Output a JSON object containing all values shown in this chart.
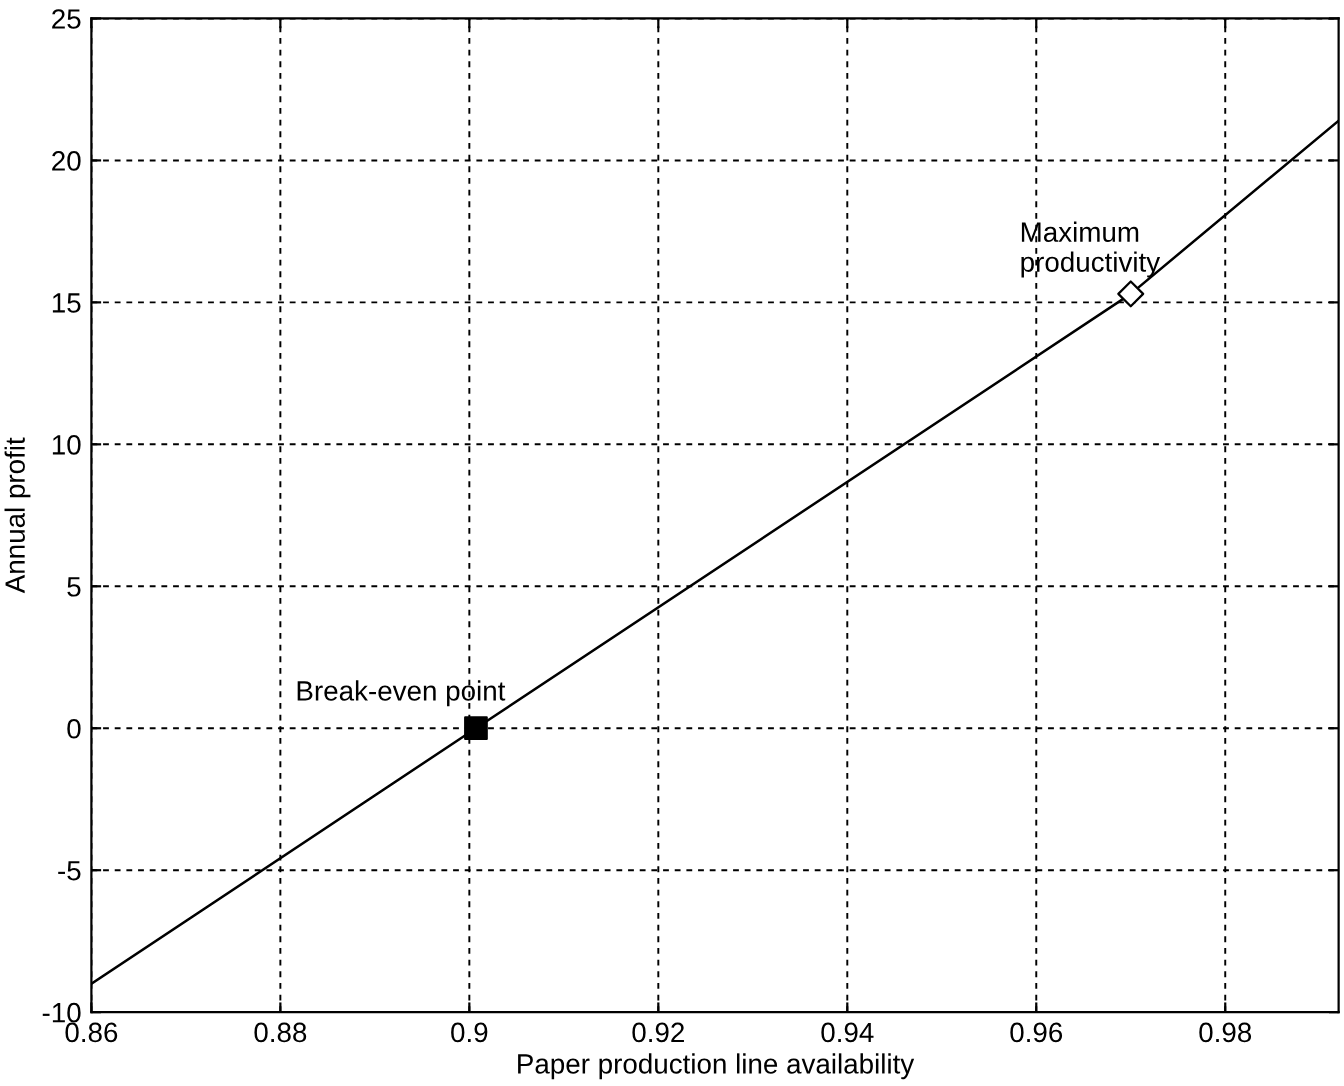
{
  "chart_data": {
    "type": "line",
    "xlabel": "Paper production line availability",
    "ylabel": "Annual profit",
    "xlim": [
      0.86,
      0.992
    ],
    "xticks": [
      0.86,
      0.88,
      0.9,
      0.92,
      0.94,
      0.96,
      0.98
    ],
    "ylim": [
      -10,
      25
    ],
    "yticks": [
      -10,
      -5,
      0,
      5,
      10,
      15,
      20,
      25
    ],
    "grid": true,
    "series": [
      {
        "color": "#000000",
        "x": [
          0.86,
          0.9007,
          0.97,
          0.992
        ],
        "values": [
          -9,
          0,
          15.3,
          21.4
        ],
        "marker": "none"
      },
      {
        "type": "scatter",
        "color": "#000000",
        "x": [
          0.9007
        ],
        "values": [
          0
        ],
        "marker": "square"
      },
      {
        "type": "scatter",
        "color": "#ffffff",
        "x": [
          0.97
        ],
        "values": [
          15.3
        ],
        "marker": "diamond"
      }
    ],
    "annotations": [
      {
        "text": "Break-even point",
        "x": 0.9007,
        "y": 0
      },
      {
        "text": "Maximum\nproductivity",
        "x": 0.97,
        "y": 15.3
      }
    ]
  }
}
